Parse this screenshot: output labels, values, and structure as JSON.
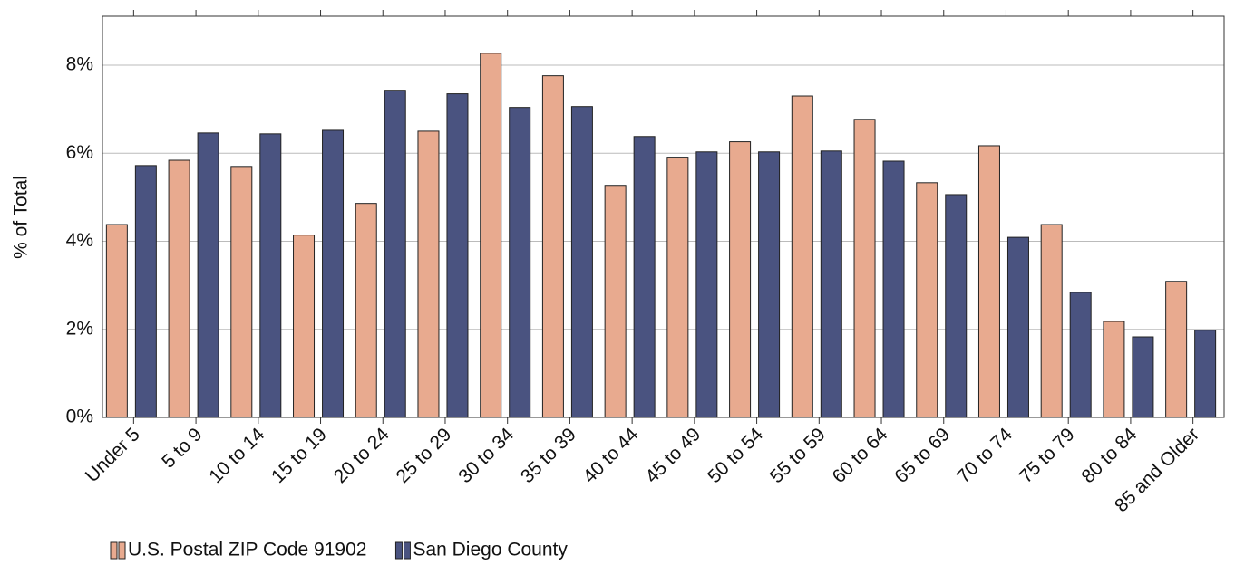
{
  "chart_data": {
    "type": "bar",
    "y_label": "% of Total",
    "categories": [
      "Under 5",
      "5 to 9",
      "10 to 14",
      "15 to 19",
      "20 to 24",
      "25 to 29",
      "30 to 34",
      "35 to 39",
      "40 to 44",
      "45 to 49",
      "50 to 54",
      "55 to 59",
      "60 to 64",
      "65 to 69",
      "70 to 74",
      "75 to 79",
      "80 to 84",
      "85 and Older"
    ],
    "series": [
      {
        "name": "U.S. Postal ZIP Code 91902",
        "color": "#e8aa8f",
        "values": [
          4.38,
          5.84,
          5.7,
          4.14,
          4.86,
          6.5,
          8.27,
          7.76,
          5.27,
          5.91,
          6.26,
          7.3,
          6.77,
          5.33,
          6.17,
          4.38,
          2.18,
          3.09
        ]
      },
      {
        "name": "San Diego County",
        "color": "#4a5380",
        "values": [
          5.72,
          6.46,
          6.44,
          6.52,
          7.43,
          7.35,
          7.04,
          7.06,
          6.38,
          6.03,
          6.03,
          6.05,
          5.82,
          5.06,
          4.09,
          2.84,
          1.83,
          1.98
        ]
      }
    ],
    "ylim": [
      0,
      9.11
    ],
    "yticks": [
      {
        "value": 0,
        "label": "0%"
      },
      {
        "value": 2,
        "label": "2%"
      },
      {
        "value": 4,
        "label": "4%"
      },
      {
        "value": 6,
        "label": "6%"
      },
      {
        "value": 8,
        "label": "8%"
      }
    ],
    "grid": true,
    "legend": "bottom-left"
  }
}
